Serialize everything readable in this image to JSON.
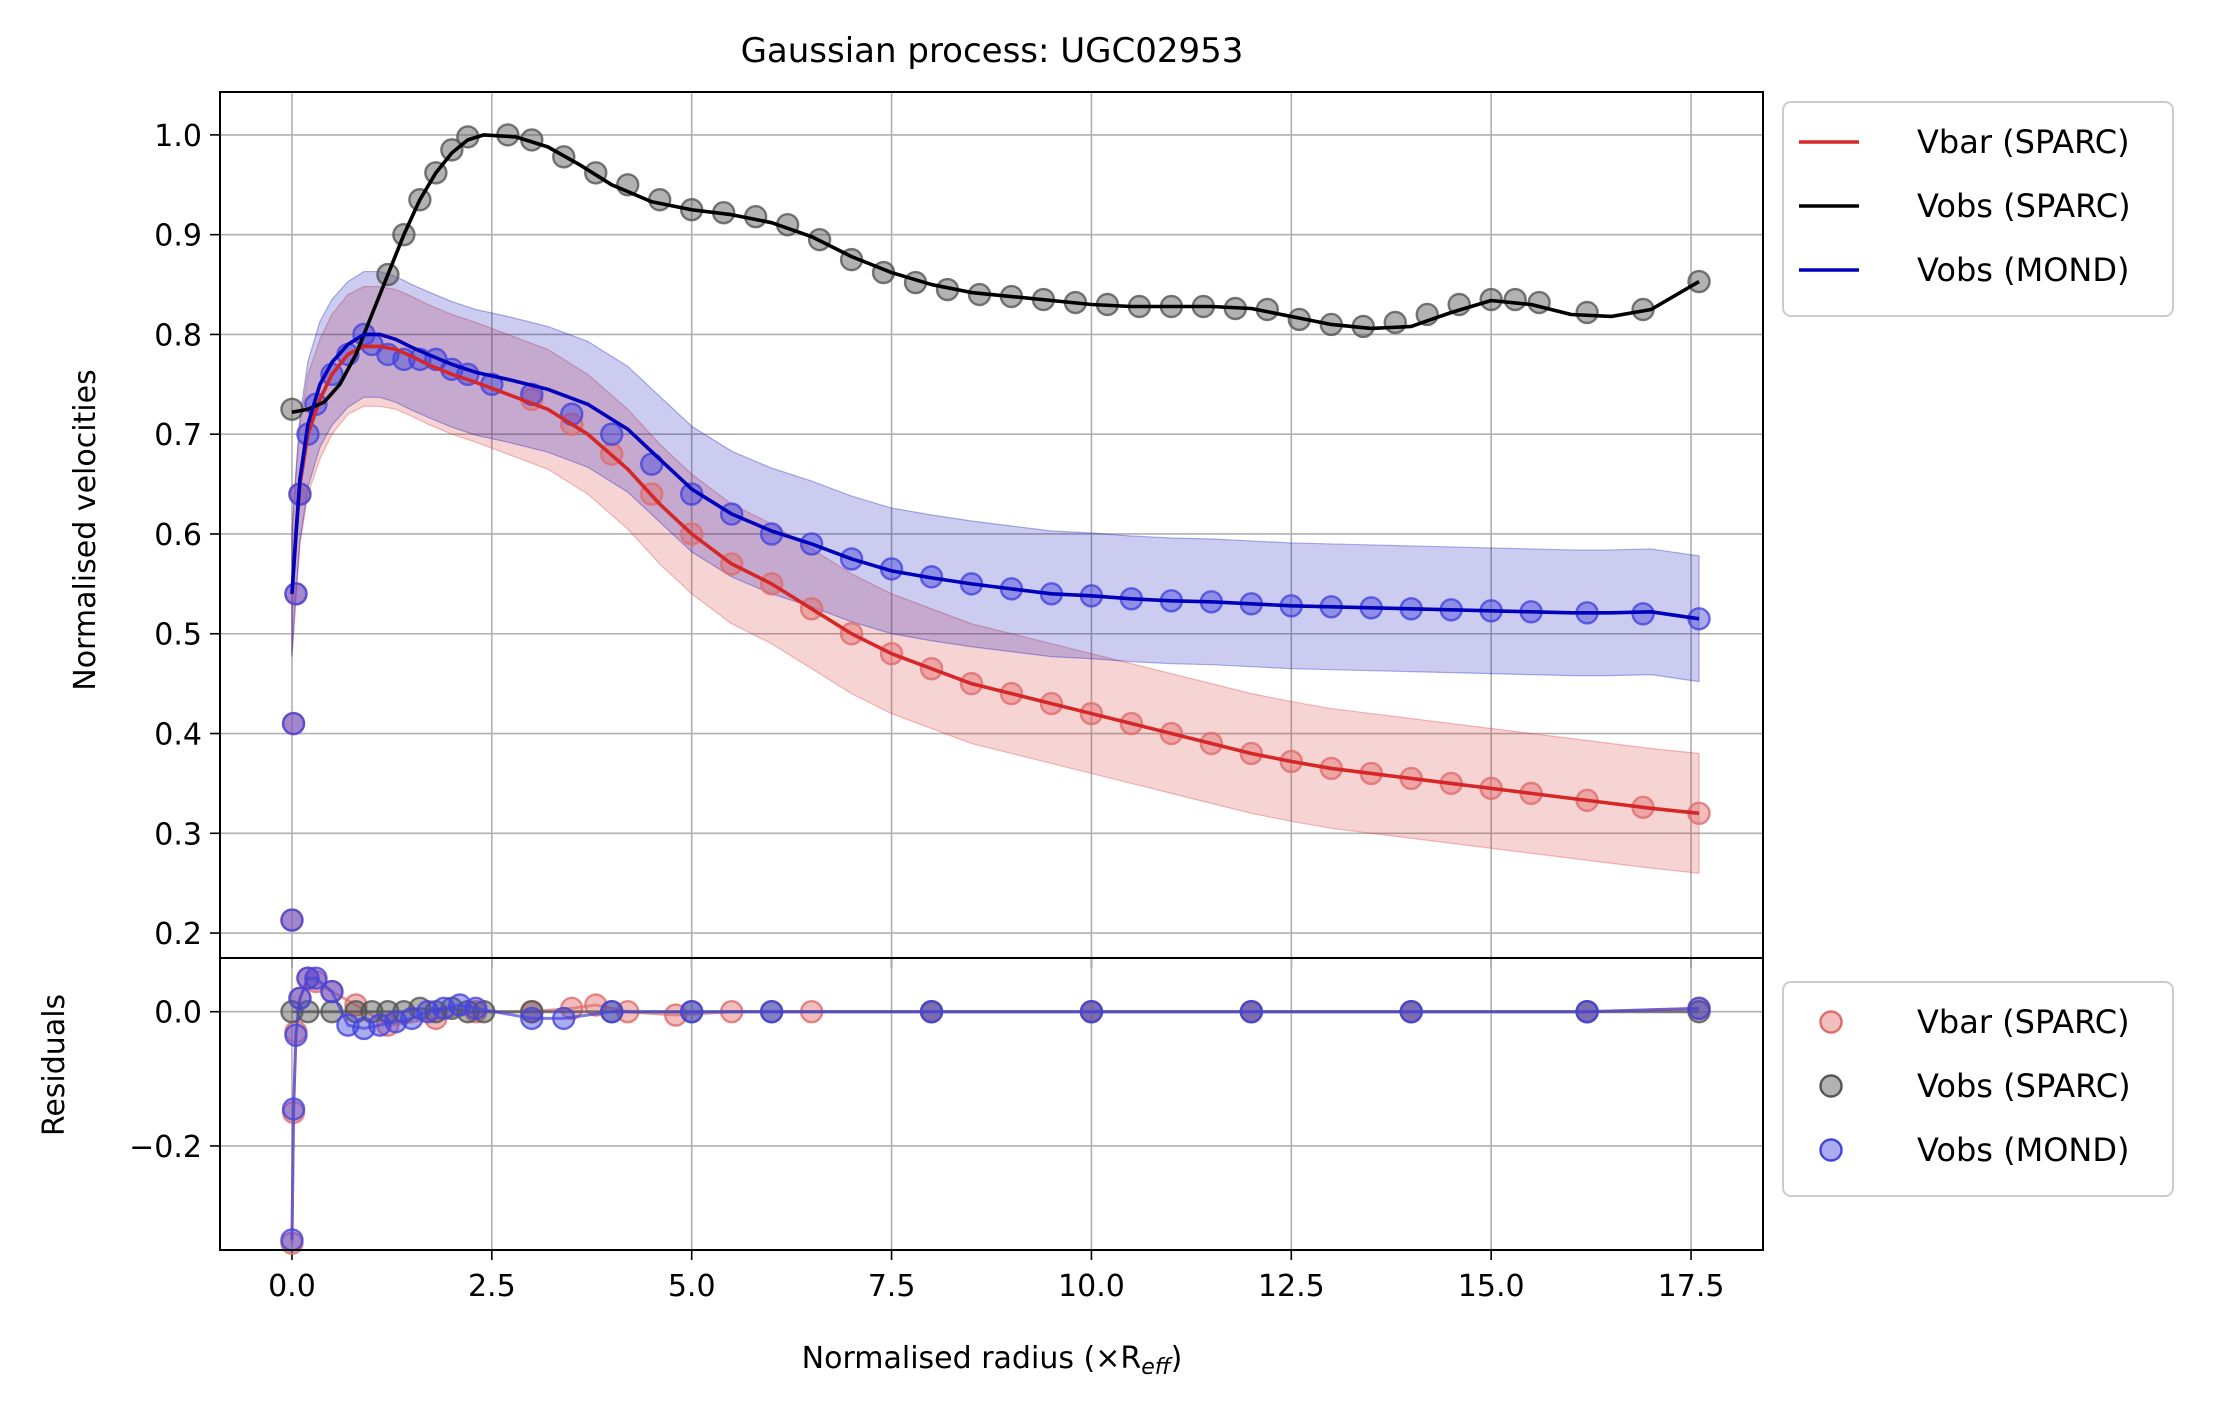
{
  "chart_data": [
    {
      "type": "line",
      "panel": "main",
      "title": "Gaussian process: UGC02953",
      "xlabel": "",
      "ylabel": "Normalised velocities",
      "xlim": [
        -0.9,
        18.4
      ],
      "ylim": [
        0.175,
        1.043
      ],
      "xticks": [
        0.0,
        2.5,
        5.0,
        7.5,
        10.0,
        12.5,
        15.0,
        17.5
      ],
      "yticks": [
        0.2,
        0.3,
        0.4,
        0.5,
        0.6,
        0.7,
        0.8,
        0.9,
        1.0
      ],
      "grid": true,
      "legend": {
        "placement": "outside upper right",
        "entries": [
          "Vbar (SPARC)",
          "Vobs (SPARC)",
          "Vobs (MOND)"
        ]
      },
      "series": [
        {
          "name": "Vbar (SPARC)",
          "color": "#d62728",
          "x": [
            0.0,
            0.05,
            0.1,
            0.2,
            0.35,
            0.5,
            0.7,
            0.9,
            1.1,
            1.3,
            1.5,
            1.7,
            2.0,
            2.3,
            2.7,
            3.2,
            3.7,
            4.2,
            4.6,
            5.0,
            5.5,
            6.0,
            6.5,
            7.0,
            7.5,
            8.0,
            8.5,
            9.0,
            9.5,
            10.0,
            10.5,
            11.0,
            11.5,
            12.0,
            12.5,
            13.0,
            13.5,
            14.0,
            14.5,
            15.0,
            15.5,
            16.0,
            16.5,
            17.0,
            17.6
          ],
          "y": [
            0.54,
            0.6,
            0.65,
            0.7,
            0.735,
            0.76,
            0.78,
            0.788,
            0.788,
            0.785,
            0.778,
            0.77,
            0.76,
            0.752,
            0.74,
            0.725,
            0.7,
            0.665,
            0.63,
            0.6,
            0.57,
            0.55,
            0.525,
            0.5,
            0.48,
            0.465,
            0.45,
            0.44,
            0.43,
            0.42,
            0.41,
            0.4,
            0.39,
            0.38,
            0.372,
            0.365,
            0.36,
            0.355,
            0.35,
            0.345,
            0.34,
            0.335,
            0.33,
            0.325,
            0.32
          ],
          "band_half_width": 0.06
        },
        {
          "name": "Vobs (SPARC)",
          "color": "#000000",
          "x": [
            0.0,
            0.2,
            0.4,
            0.6,
            0.8,
            1.0,
            1.2,
            1.4,
            1.6,
            1.8,
            2.0,
            2.2,
            2.4,
            2.8,
            3.2,
            3.6,
            4.0,
            4.5,
            5.0,
            5.5,
            6.0,
            6.5,
            7.0,
            7.5,
            8.0,
            8.5,
            9.0,
            9.5,
            10.0,
            10.5,
            11.0,
            11.5,
            12.0,
            12.5,
            13.0,
            13.5,
            14.0,
            14.5,
            15.0,
            15.5,
            16.0,
            16.5,
            17.0,
            17.6
          ],
          "y": [
            0.722,
            0.725,
            0.732,
            0.75,
            0.78,
            0.82,
            0.86,
            0.9,
            0.935,
            0.962,
            0.982,
            0.995,
            1.0,
            0.998,
            0.988,
            0.97,
            0.95,
            0.933,
            0.925,
            0.92,
            0.912,
            0.898,
            0.878,
            0.862,
            0.85,
            0.842,
            0.838,
            0.834,
            0.83,
            0.828,
            0.828,
            0.828,
            0.826,
            0.818,
            0.81,
            0.806,
            0.808,
            0.822,
            0.834,
            0.83,
            0.82,
            0.818,
            0.825,
            0.853
          ]
        },
        {
          "name": "Vobs (MOND)",
          "color": "#0000bb",
          "x": [
            0.0,
            0.05,
            0.1,
            0.2,
            0.35,
            0.5,
            0.7,
            0.9,
            1.1,
            1.3,
            1.5,
            1.7,
            2.0,
            2.3,
            2.7,
            3.2,
            3.7,
            4.2,
            4.6,
            5.0,
            5.5,
            6.0,
            6.5,
            7.0,
            7.5,
            8.0,
            8.5,
            9.0,
            9.5,
            10.0,
            10.5,
            11.0,
            11.5,
            12.0,
            12.5,
            13.0,
            13.5,
            14.0,
            14.5,
            15.0,
            15.5,
            16.0,
            16.5,
            17.0,
            17.6
          ],
          "y": [
            0.54,
            0.6,
            0.655,
            0.71,
            0.75,
            0.772,
            0.79,
            0.8,
            0.8,
            0.795,
            0.787,
            0.78,
            0.77,
            0.762,
            0.755,
            0.745,
            0.73,
            0.705,
            0.675,
            0.645,
            0.62,
            0.603,
            0.59,
            0.575,
            0.563,
            0.556,
            0.55,
            0.545,
            0.54,
            0.538,
            0.535,
            0.533,
            0.532,
            0.53,
            0.528,
            0.527,
            0.526,
            0.525,
            0.524,
            0.523,
            0.522,
            0.521,
            0.521,
            0.522,
            0.515
          ],
          "band_half_width": 0.063
        }
      ],
      "scatter": [
        {
          "name": "Vbar (SPARC)",
          "color": "#e06c6c",
          "x": [
            0.0,
            0.02,
            0.05,
            0.1,
            3.0,
            3.5,
            4.0,
            4.5,
            5.0,
            5.5,
            6.0,
            6.5,
            7.0,
            7.5,
            8.0,
            8.5,
            9.0,
            9.5,
            10.0,
            10.5,
            11.0,
            11.5,
            12.0,
            12.5,
            13.0,
            13.5,
            14.0,
            14.5,
            15.0,
            15.5,
            16.2,
            16.9,
            17.6
          ],
          "y": [
            0.213,
            0.41,
            0.54,
            0.64,
            0.735,
            0.71,
            0.68,
            0.64,
            0.6,
            0.57,
            0.55,
            0.525,
            0.5,
            0.48,
            0.465,
            0.45,
            0.44,
            0.43,
            0.42,
            0.41,
            0.4,
            0.39,
            0.38,
            0.372,
            0.365,
            0.36,
            0.355,
            0.35,
            0.345,
            0.34,
            0.333,
            0.326,
            0.32
          ]
        },
        {
          "name": "Vobs (SPARC)",
          "color": "#555555",
          "x": [
            0.0,
            1.2,
            1.4,
            1.6,
            1.8,
            2.0,
            2.2,
            2.7,
            3.0,
            3.4,
            3.8,
            4.2,
            4.6,
            5.0,
            5.4,
            5.8,
            6.2,
            6.6,
            7.0,
            7.4,
            7.8,
            8.2,
            8.6,
            9.0,
            9.4,
            9.8,
            10.2,
            10.6,
            11.0,
            11.4,
            11.8,
            12.2,
            12.6,
            13.0,
            13.4,
            13.8,
            14.2,
            14.6,
            15.0,
            15.3,
            15.6,
            16.2,
            16.9,
            17.6
          ],
          "y": [
            0.725,
            0.86,
            0.9,
            0.935,
            0.962,
            0.985,
            0.998,
            1.0,
            0.995,
            0.978,
            0.962,
            0.95,
            0.935,
            0.925,
            0.922,
            0.918,
            0.91,
            0.895,
            0.875,
            0.862,
            0.852,
            0.845,
            0.84,
            0.838,
            0.835,
            0.832,
            0.83,
            0.828,
            0.828,
            0.828,
            0.826,
            0.825,
            0.815,
            0.81,
            0.808,
            0.812,
            0.82,
            0.83,
            0.835,
            0.835,
            0.832,
            0.822,
            0.825,
            0.853
          ]
        },
        {
          "name": "Vobs (MOND)",
          "color": "#4444dd",
          "x": [
            0.0,
            0.02,
            0.05,
            0.1,
            0.2,
            0.3,
            0.5,
            0.7,
            0.9,
            1.0,
            1.2,
            1.4,
            1.6,
            1.8,
            2.0,
            2.2,
            2.5,
            3.0,
            3.5,
            4.0,
            4.5,
            5.0,
            5.5,
            6.0,
            6.5,
            7.0,
            7.5,
            8.0,
            8.5,
            9.0,
            9.5,
            10.0,
            10.5,
            11.0,
            11.5,
            12.0,
            12.5,
            13.0,
            13.5,
            14.0,
            14.5,
            15.0,
            15.5,
            16.2,
            16.9,
            17.6
          ],
          "y": [
            0.213,
            0.41,
            0.54,
            0.64,
            0.7,
            0.73,
            0.76,
            0.78,
            0.8,
            0.79,
            0.78,
            0.775,
            0.775,
            0.775,
            0.765,
            0.76,
            0.75,
            0.74,
            0.72,
            0.7,
            0.67,
            0.64,
            0.62,
            0.6,
            0.59,
            0.575,
            0.565,
            0.557,
            0.55,
            0.545,
            0.54,
            0.538,
            0.535,
            0.533,
            0.532,
            0.53,
            0.528,
            0.527,
            0.526,
            0.525,
            0.524,
            0.523,
            0.522,
            0.521,
            0.52,
            0.515
          ]
        }
      ]
    },
    {
      "type": "scatter",
      "panel": "residuals",
      "title": "",
      "xlabel": "Normalised radius (×R",
      "xlabel_sub": "eff",
      "xlabel_end": ")",
      "ylabel": "Residuals",
      "xlim": [
        -0.9,
        18.4
      ],
      "ylim": [
        -0.355,
        0.08
      ],
      "xticks": [
        0.0,
        2.5,
        5.0,
        7.5,
        10.0,
        12.5,
        15.0,
        17.5
      ],
      "xticklabels": [
        "0.0",
        "2.5",
        "5.0",
        "7.5",
        "10.0",
        "12.5",
        "15.0",
        "17.5"
      ],
      "yticks": [
        0.0,
        -0.2
      ],
      "yticklabels": [
        "0.0",
        "−0.2"
      ],
      "grid": true,
      "legend": {
        "placement": "outside right",
        "entries": [
          "Vbar (SPARC)",
          "Vobs (SPARC)",
          "Vobs (MOND)"
        ]
      },
      "series": [
        {
          "name": "Vbar (SPARC)",
          "color": "#e06c6c",
          "x": [
            0.0,
            0.02,
            0.05,
            0.1,
            0.2,
            0.3,
            0.5,
            0.8,
            1.2,
            1.8,
            2.3,
            3.0,
            3.5,
            3.8,
            4.2,
            4.8,
            5.5,
            6.5,
            8.0,
            10.0,
            12.0,
            14.0,
            16.2,
            17.6
          ],
          "y": [
            -0.345,
            -0.15,
            -0.03,
            0.02,
            0.05,
            0.045,
            0.03,
            0.01,
            -0.02,
            -0.01,
            0.0,
            0.0,
            0.005,
            0.01,
            0.0,
            -0.005,
            0.0,
            0.0,
            0.0,
            0.0,
            0.0,
            0.0,
            0.0,
            0.005
          ]
        },
        {
          "name": "Vobs (SPARC)",
          "color": "#555555",
          "x": [
            0.0,
            0.2,
            0.5,
            0.8,
            1.0,
            1.2,
            1.4,
            1.6,
            1.8,
            2.0,
            2.2,
            2.4,
            3.0,
            4.0,
            5.0,
            6.0,
            8.0,
            10.0,
            12.0,
            14.0,
            16.2,
            17.6
          ],
          "y": [
            0.0,
            0.0,
            0.0,
            0.0,
            0.0,
            0.0,
            0.0,
            0.005,
            0.0,
            0.005,
            0.0,
            0.0,
            0.0,
            0.0,
            0.0,
            0.0,
            0.0,
            0.0,
            0.0,
            0.0,
            0.0,
            0.0
          ]
        },
        {
          "name": "Vobs (MOND)",
          "color": "#4444dd",
          "x": [
            0.0,
            0.02,
            0.05,
            0.1,
            0.2,
            0.3,
            0.5,
            0.7,
            0.9,
            1.1,
            1.3,
            1.5,
            1.7,
            1.9,
            2.1,
            2.3,
            3.0,
            3.4,
            4.0,
            5.0,
            6.0,
            8.0,
            10.0,
            12.0,
            14.0,
            16.2,
            17.6
          ],
          "y": [
            -0.34,
            -0.145,
            -0.035,
            0.02,
            0.05,
            0.05,
            0.03,
            -0.02,
            -0.025,
            -0.02,
            -0.015,
            -0.01,
            0.0,
            0.005,
            0.01,
            0.005,
            -0.01,
            -0.01,
            0.0,
            0.0,
            0.0,
            0.0,
            0.0,
            0.0,
            0.0,
            0.0,
            0.005
          ]
        }
      ]
    }
  ]
}
